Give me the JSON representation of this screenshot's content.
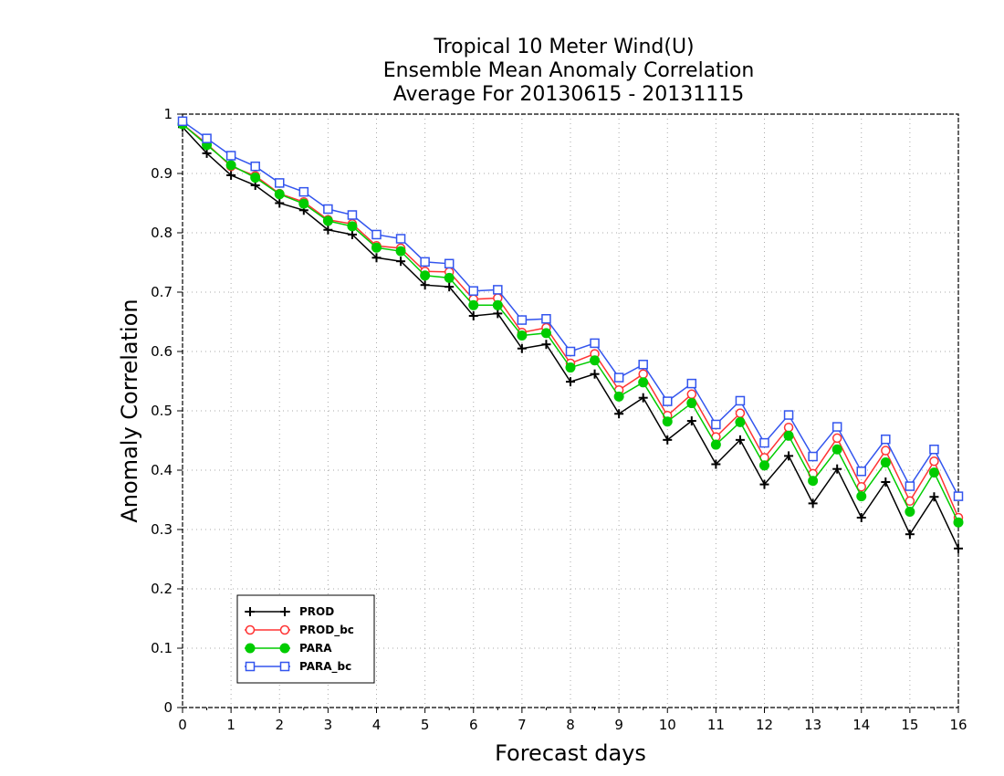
{
  "chart_data": {
    "type": "line",
    "title": [
      "Tropical 10 Meter Wind(U)",
      "Ensemble Mean Anomaly Correlation",
      "Average For 20130615 - 20131115"
    ],
    "xlabel": "Forecast days",
    "ylabel": "Anomaly Correlation",
    "xlim": [
      0,
      16
    ],
    "ylim": [
      0,
      1
    ],
    "xticks": [
      0,
      1,
      2,
      3,
      4,
      5,
      6,
      7,
      8,
      9,
      10,
      11,
      12,
      13,
      14,
      15,
      16
    ],
    "xtick_labels": [
      "0",
      "1",
      "2",
      "3",
      "4",
      "5",
      "6",
      "7",
      "8",
      "9",
      "10",
      "11",
      "12",
      "13",
      "14",
      "15",
      "16"
    ],
    "yticks": [
      0,
      0.1,
      0.2,
      0.3,
      0.4,
      0.5,
      0.6,
      0.7,
      0.8,
      0.9,
      1
    ],
    "ytick_labels": [
      "0",
      "0.1",
      "0.2",
      "0.3",
      "0.4",
      "0.5",
      "0.6",
      "0.7",
      "0.8",
      "0.9",
      "1"
    ],
    "grid": true,
    "legend_position": "bottom-left",
    "x": [
      0,
      0.5,
      1,
      1.5,
      2,
      2.5,
      3,
      3.5,
      4,
      4.5,
      5,
      5.5,
      6,
      6.5,
      7,
      7.5,
      8,
      8.5,
      9,
      9.5,
      10,
      10.5,
      11,
      11.5,
      12,
      12.5,
      13,
      13.5,
      14,
      14.5,
      15,
      15.5,
      16
    ],
    "series": [
      {
        "name": "PROD",
        "color": "#000000",
        "marker": "plus",
        "values": [
          0.978,
          0.934,
          0.897,
          0.88,
          0.85,
          0.838,
          0.805,
          0.797,
          0.758,
          0.752,
          0.712,
          0.709,
          0.66,
          0.664,
          0.605,
          0.612,
          0.549,
          0.562,
          0.495,
          0.522,
          0.451,
          0.483,
          0.41,
          0.451,
          0.376,
          0.424,
          0.344,
          0.402,
          0.32,
          0.38,
          0.292,
          0.355,
          0.268
        ]
      },
      {
        "name": "PROD_bc",
        "color": "#ff3333",
        "marker": "open-circle",
        "values": [
          0.983,
          0.95,
          0.912,
          0.896,
          0.866,
          0.852,
          0.822,
          0.815,
          0.778,
          0.774,
          0.735,
          0.734,
          0.688,
          0.69,
          0.632,
          0.64,
          0.58,
          0.596,
          0.535,
          0.562,
          0.492,
          0.528,
          0.456,
          0.496,
          0.421,
          0.472,
          0.394,
          0.454,
          0.372,
          0.433,
          0.348,
          0.415,
          0.32
        ]
      },
      {
        "name": "PARA",
        "color": "#00cc00",
        "marker": "filled-circle",
        "values": [
          0.983,
          0.948,
          0.914,
          0.893,
          0.865,
          0.849,
          0.82,
          0.811,
          0.775,
          0.769,
          0.728,
          0.724,
          0.678,
          0.678,
          0.627,
          0.631,
          0.573,
          0.585,
          0.524,
          0.548,
          0.482,
          0.513,
          0.443,
          0.481,
          0.408,
          0.458,
          0.382,
          0.435,
          0.356,
          0.413,
          0.33,
          0.396,
          0.312
        ]
      },
      {
        "name": "PARA_bc",
        "color": "#3355ee",
        "marker": "open-square",
        "values": [
          0.988,
          0.959,
          0.93,
          0.912,
          0.884,
          0.869,
          0.84,
          0.83,
          0.797,
          0.79,
          0.751,
          0.748,
          0.702,
          0.704,
          0.653,
          0.655,
          0.6,
          0.614,
          0.556,
          0.578,
          0.516,
          0.546,
          0.477,
          0.517,
          0.446,
          0.493,
          0.423,
          0.473,
          0.398,
          0.452,
          0.373,
          0.435,
          0.356
        ]
      }
    ]
  }
}
